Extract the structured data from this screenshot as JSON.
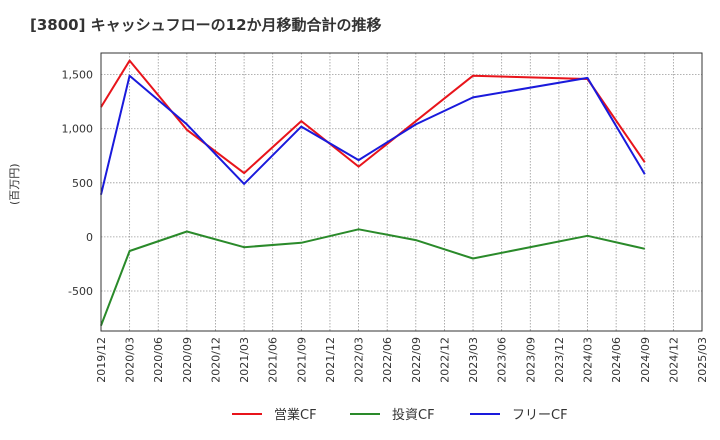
{
  "chart_data": {
    "type": "line",
    "title": "[3800]  キャッシュフローの12か月移動合計の推移",
    "ylabel": "(百万円)",
    "xlabel": "",
    "ylim": [
      -870,
      1700
    ],
    "yticks": [
      -500,
      0,
      500,
      1000,
      1500
    ],
    "ytick_labels": [
      "-500",
      "0",
      "500",
      "1,000",
      "1,500"
    ],
    "categories": [
      "2019/12",
      "2020/03",
      "2020/06",
      "2020/09",
      "2020/12",
      "2021/03",
      "2021/06",
      "2021/09",
      "2021/12",
      "2022/03",
      "2022/06",
      "2022/09",
      "2022/12",
      "2023/03",
      "2023/06",
      "2023/09",
      "2023/12",
      "2024/03",
      "2024/06",
      "2024/09",
      "2024/12",
      "2025/03"
    ],
    "grid": true,
    "legend_position": "bottom",
    "series": [
      {
        "name": "営業CF",
        "color": "#e8141b",
        "points": [
          [
            0,
            1200
          ],
          [
            1,
            1630
          ],
          [
            3,
            990
          ],
          [
            5,
            590
          ],
          [
            7,
            1070
          ],
          [
            9,
            650
          ],
          [
            13,
            1490
          ],
          [
            17,
            1460
          ],
          [
            19,
            690
          ]
        ]
      },
      {
        "name": "投資CF",
        "color": "#2a8a2a",
        "points": [
          [
            0,
            -820
          ],
          [
            1,
            -130
          ],
          [
            3,
            50
          ],
          [
            5,
            -95
          ],
          [
            7,
            -55
          ],
          [
            9,
            70
          ],
          [
            11,
            -30
          ],
          [
            13,
            -200
          ],
          [
            17,
            10
          ],
          [
            19,
            -110
          ]
        ]
      },
      {
        "name": "フリーCF",
        "color": "#1a1adc",
        "points": [
          [
            0,
            390
          ],
          [
            1,
            1490
          ],
          [
            3,
            1040
          ],
          [
            5,
            490
          ],
          [
            7,
            1020
          ],
          [
            9,
            710
          ],
          [
            11,
            1040
          ],
          [
            13,
            1290
          ],
          [
            17,
            1470
          ],
          [
            19,
            580
          ]
        ]
      }
    ]
  }
}
